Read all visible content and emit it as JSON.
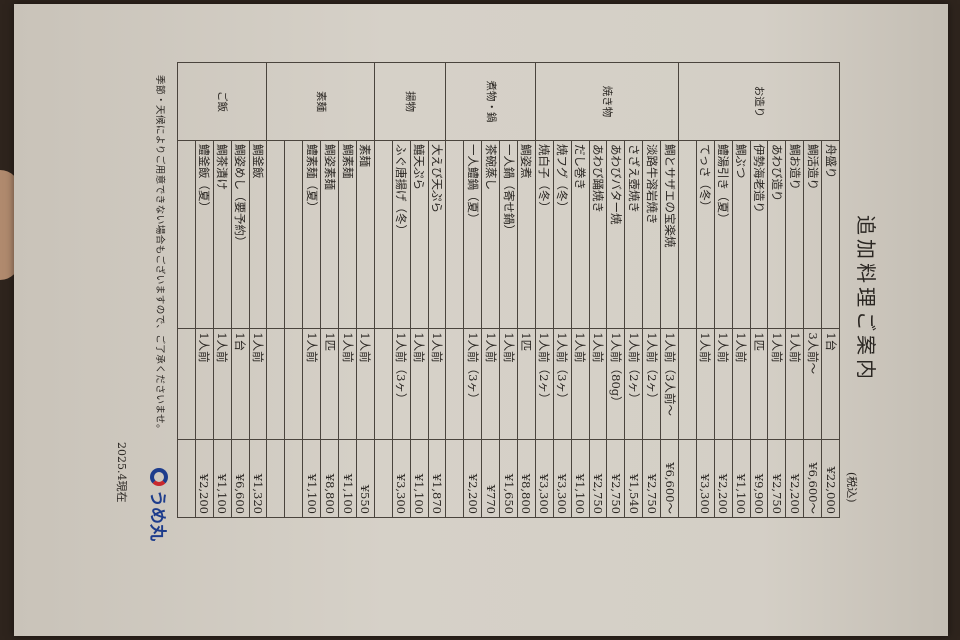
{
  "menu": {
    "title": "追加料理ご案内",
    "tax_note": "(税込)",
    "sections": [
      {
        "category": "お造り",
        "items": [
          {
            "name": "舟盛り",
            "qty": "1台",
            "price": "¥22,000"
          },
          {
            "name": "鯛活造り",
            "qty": "3人前～",
            "price": "¥6,600～"
          },
          {
            "name": "鯛お造り",
            "qty": "1人前",
            "price": "¥2,200"
          },
          {
            "name": "あわび造り",
            "qty": "1人前",
            "price": "¥2,750"
          },
          {
            "name": "伊勢海老造り",
            "qty": "1匹",
            "price": "¥9,900"
          },
          {
            "name": "鯛ぶつ",
            "qty": "1人前",
            "price": "¥1,100"
          },
          {
            "name": "鱧湯引き（夏）",
            "qty": "1人前",
            "price": "¥2,200"
          },
          {
            "name": "てっさ（冬）",
            "qty": "1人前",
            "price": "¥3,300"
          },
          {
            "name": "",
            "qty": "",
            "price": ""
          }
        ]
      },
      {
        "category": "焼き物",
        "items": [
          {
            "name": "鯛とサザエの宝楽焼",
            "qty": "1人前（3人前～",
            "price": "¥6,600～"
          },
          {
            "name": "淡路牛溶岩焼き",
            "qty": "1人前（2ヶ）",
            "price": "¥2,750"
          },
          {
            "name": "さざえ壺焼き",
            "qty": "1人前（2ヶ）",
            "price": "¥1,540"
          },
          {
            "name": "あわびバター焼",
            "qty": "1人前（80g）",
            "price": "¥2,750"
          },
          {
            "name": "あわび踊焼き",
            "qty": "1人前",
            "price": "¥2,750"
          },
          {
            "name": "だし巻き",
            "qty": "1人前",
            "price": "¥1,100"
          },
          {
            "name": "焼フグ（冬）",
            "qty": "1人前（3ヶ）",
            "price": "¥3,300"
          },
          {
            "name": "焼白子（冬）",
            "qty": "1人前（2ヶ）",
            "price": "¥3,300"
          }
        ]
      },
      {
        "category": "煮物・鍋",
        "items": [
          {
            "name": "鯛姿煮",
            "qty": "1匹",
            "price": "¥8,800"
          },
          {
            "name": "一人鍋（寄せ鍋）",
            "qty": "1人前",
            "price": "¥1,650"
          },
          {
            "name": "茶碗蒸し",
            "qty": "1人前",
            "price": "¥770"
          },
          {
            "name": "一人鱧鍋（夏）",
            "qty": "1人前（3ヶ）",
            "price": "¥2,200"
          },
          {
            "name": "",
            "qty": "",
            "price": ""
          }
        ]
      },
      {
        "category": "揚物",
        "items": [
          {
            "name": "大えび天ぷら",
            "qty": "1人前",
            "price": "¥1,870"
          },
          {
            "name": "鱚天ぷら",
            "qty": "1人前",
            "price": "¥1,100"
          },
          {
            "name": "ふぐ唐揚げ（冬）",
            "qty": "1人前（3ヶ）",
            "price": "¥3,300"
          },
          {
            "name": "",
            "qty": "",
            "price": ""
          }
        ]
      },
      {
        "category": "素麺",
        "items": [
          {
            "name": "素麺",
            "qty": "1人前",
            "price": "¥550"
          },
          {
            "name": "鯛素麺",
            "qty": "1人前",
            "price": "¥1,100"
          },
          {
            "name": "鯛姿素麺",
            "qty": "1匹",
            "price": "¥8,800"
          },
          {
            "name": "鱧素麺（夏）",
            "qty": "1人前",
            "price": "¥1,100"
          },
          {
            "name": "",
            "qty": "",
            "price": ""
          },
          {
            "name": "",
            "qty": "",
            "price": ""
          }
        ]
      },
      {
        "category": "ご飯",
        "items": [
          {
            "name": "鯛釜飯",
            "qty": "1人前",
            "price": "¥1,320"
          },
          {
            "name": "鯛姿めし（要予約）",
            "qty": "1台",
            "price": "¥6,600"
          },
          {
            "name": "鯛茶漬け",
            "qty": "1人前",
            "price": "¥1,100"
          },
          {
            "name": "鱧釜飯（夏）",
            "qty": "1人前",
            "price": "¥2,200"
          },
          {
            "name": "",
            "qty": "",
            "price": ""
          }
        ]
      }
    ],
    "footer_note": "季節・天候によりご用意できない場合もございますので、ご了承くださいませ。",
    "date": "2025.4現在",
    "logo_text": "うめ丸",
    "colors": {
      "logo_blue": "#1d3c8c",
      "logo_red": "#c8282e",
      "paper": "#d4cfc6"
    }
  }
}
